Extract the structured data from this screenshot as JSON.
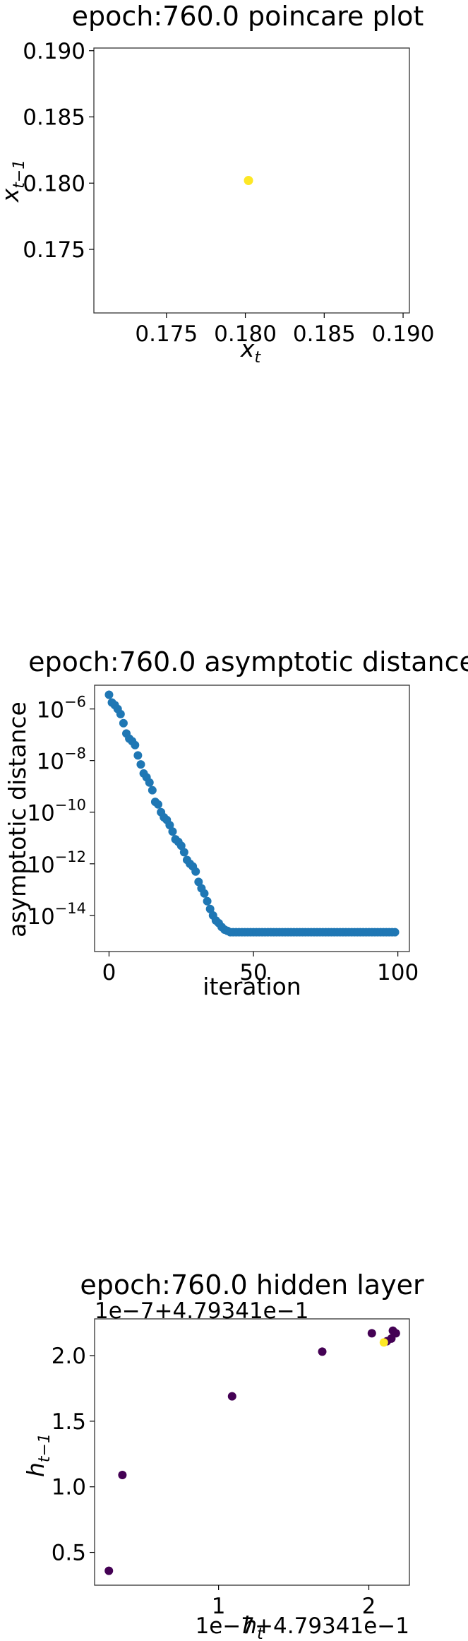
{
  "chart_data": [
    {
      "type": "scatter",
      "title": "epoch:760.0 poincare plot",
      "xlabel": "x_t",
      "ylabel": "x_{t-1}",
      "xlim": [
        0.1704,
        0.1904
      ],
      "ylim": [
        0.1702,
        0.1902
      ],
      "xticks": [
        0.175,
        0.18,
        0.185,
        0.19
      ],
      "xtick_labels": [
        "0.175",
        "0.180",
        "0.185",
        "0.190"
      ],
      "yticks": [
        0.175,
        0.18,
        0.185,
        0.19
      ],
      "ytick_labels": [
        "0.175",
        "0.180",
        "0.185",
        "0.190"
      ],
      "grid": false,
      "colors": [
        "#fde725"
      ],
      "points": [
        {
          "x": 0.1802,
          "y": 0.1802
        }
      ]
    },
    {
      "type": "scatter",
      "title": "epoch:760.0 asymptotic distance",
      "xlabel": "iteration",
      "ylabel": "asymptotic distance",
      "yscale": "log",
      "xlim": [
        -5,
        104
      ],
      "ylim_exp": [
        -15.4,
        -5.08
      ],
      "xticks": [
        0,
        50,
        100
      ],
      "xtick_labels": [
        "0",
        "50",
        "100"
      ],
      "yticks_exp": [
        -6,
        -8,
        -10,
        -12,
        -14
      ],
      "ytick_base": "10",
      "ytick_exponents": [
        "−6",
        "−8",
        "−10",
        "−12",
        "−14"
      ],
      "grid": false,
      "colors": [
        "#1f77b4"
      ],
      "x": [
        0,
        1,
        2,
        3,
        4,
        5,
        6,
        7,
        8,
        9,
        10,
        11,
        12,
        13,
        14,
        15,
        16,
        17,
        18,
        19,
        20,
        21,
        22,
        23,
        24,
        25,
        26,
        27,
        28,
        29,
        30,
        31,
        32,
        33,
        34,
        35,
        36,
        37,
        38,
        39,
        40,
        41,
        42,
        43,
        44,
        45,
        46,
        47,
        48,
        49,
        50,
        51,
        52,
        53,
        54,
        55,
        56,
        57,
        58,
        59,
        60,
        61,
        62,
        63,
        64,
        65,
        66,
        67,
        68,
        69,
        70,
        71,
        72,
        73,
        74,
        75,
        76,
        77,
        78,
        79,
        80,
        81,
        82,
        83,
        84,
        85,
        86,
        87,
        88,
        89,
        90,
        91,
        92,
        93,
        94,
        95,
        96,
        97,
        98,
        99
      ],
      "y_exp": [
        -5.45,
        -5.75,
        -5.85,
        -6.0,
        -6.2,
        -6.55,
        -6.95,
        -7.15,
        -7.25,
        -7.4,
        -7.8,
        -8.15,
        -8.5,
        -8.65,
        -8.85,
        -9.15,
        -9.6,
        -9.7,
        -10.0,
        -10.2,
        -10.3,
        -10.5,
        -10.75,
        -11.05,
        -11.15,
        -11.3,
        -11.55,
        -11.85,
        -12.0,
        -12.1,
        -12.3,
        -12.7,
        -12.95,
        -13.15,
        -13.45,
        -13.75,
        -14.0,
        -14.2,
        -14.3,
        -14.45,
        -14.55,
        -14.6,
        -14.65,
        -14.65,
        -14.65,
        -14.65,
        -14.65,
        -14.65,
        -14.65,
        -14.65,
        -14.65,
        -14.65,
        -14.65,
        -14.65,
        -14.65,
        -14.65,
        -14.65,
        -14.65,
        -14.65,
        -14.65,
        -14.65,
        -14.65,
        -14.65,
        -14.65,
        -14.65,
        -14.65,
        -14.65,
        -14.65,
        -14.65,
        -14.65,
        -14.65,
        -14.65,
        -14.65,
        -14.65,
        -14.65,
        -14.65,
        -14.65,
        -14.65,
        -14.65,
        -14.65,
        -14.65,
        -14.65,
        -14.65,
        -14.65,
        -14.65,
        -14.65,
        -14.65,
        -14.65,
        -14.65,
        -14.65,
        -14.65,
        -14.65,
        -14.65,
        -14.65,
        -14.65,
        -14.65,
        -14.65,
        -14.65,
        -14.65,
        -14.65
      ]
    },
    {
      "type": "scatter",
      "title": "epoch:760.0 hidden layer",
      "xlabel": "h_t",
      "ylabel": "h_{t-1}",
      "x_offset_label": "1e−7+4.79341e−1",
      "y_offset_label": "1e−7+4.79341e−1",
      "xlim": [
        0.175,
        2.27
      ],
      "ylim": [
        0.25,
        2.28
      ],
      "xticks": [
        1,
        2
      ],
      "xtick_labels": [
        "1",
        "2"
      ],
      "yticks": [
        0.5,
        1.0,
        1.5,
        2.0
      ],
      "ytick_labels": [
        "0.5",
        "1.0",
        "1.5",
        "2.0"
      ],
      "grid": false,
      "colors": [
        "#440154",
        "#fde725"
      ],
      "points": [
        {
          "x": 0.36,
          "y": 1.09,
          "c": "#440154"
        },
        {
          "x": 0.27,
          "y": 0.36,
          "c": "#440154"
        },
        {
          "x": 1.09,
          "y": 1.69,
          "c": "#440154"
        },
        {
          "x": 1.69,
          "y": 2.03,
          "c": "#440154"
        },
        {
          "x": 2.02,
          "y": 2.17,
          "c": "#440154"
        },
        {
          "x": 2.16,
          "y": 2.19,
          "c": "#440154"
        },
        {
          "x": 2.18,
          "y": 2.17,
          "c": "#440154"
        },
        {
          "x": 2.15,
          "y": 2.13,
          "c": "#440154"
        },
        {
          "x": 2.12,
          "y": 2.11,
          "c": "#440154"
        },
        {
          "x": 2.1,
          "y": 2.1,
          "c": "#fde725"
        }
      ]
    }
  ]
}
